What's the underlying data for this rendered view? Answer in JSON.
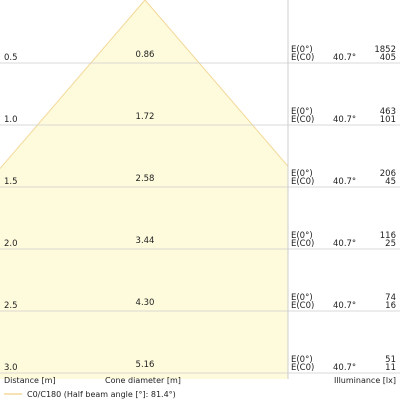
{
  "chart_data": {
    "type": "table",
    "columns": {
      "distance": "Distance [m]",
      "cone": "Cone diameter [m]",
      "illuminance": "Illuminance [lx]"
    },
    "legend": "C0/C180 (Half beam angle [°]: 81.4°)",
    "colors": {
      "cone_fill": "#fefbdc",
      "cone_edge": "#f3d898",
      "grid": "#cccccc"
    },
    "rows": [
      {
        "distance": "0.5",
        "cone": "0.86",
        "e0_label": "E(0°)",
        "ec0_label": "E(C0)",
        "angle": "40.7°",
        "e0": "1852",
        "ec0": "405"
      },
      {
        "distance": "1.0",
        "cone": "1.72",
        "e0_label": "E(0°)",
        "ec0_label": "E(C0)",
        "angle": "40.7°",
        "e0": "463",
        "ec0": "101"
      },
      {
        "distance": "1.5",
        "cone": "2.58",
        "e0_label": "E(0°)",
        "ec0_label": "E(C0)",
        "angle": "40.7°",
        "e0": "206",
        "ec0": "45"
      },
      {
        "distance": "2.0",
        "cone": "3.44",
        "e0_label": "E(0°)",
        "ec0_label": "E(C0)",
        "angle": "40.7°",
        "e0": "116",
        "ec0": "25"
      },
      {
        "distance": "2.5",
        "cone": "4.30",
        "e0_label": "E(0°)",
        "ec0_label": "E(C0)",
        "angle": "40.7°",
        "e0": "74",
        "ec0": "16"
      },
      {
        "distance": "3.0",
        "cone": "5.16",
        "e0_label": "E(0°)",
        "ec0_label": "E(C0)",
        "angle": "40.7°",
        "e0": "51",
        "ec0": "11"
      }
    ]
  }
}
